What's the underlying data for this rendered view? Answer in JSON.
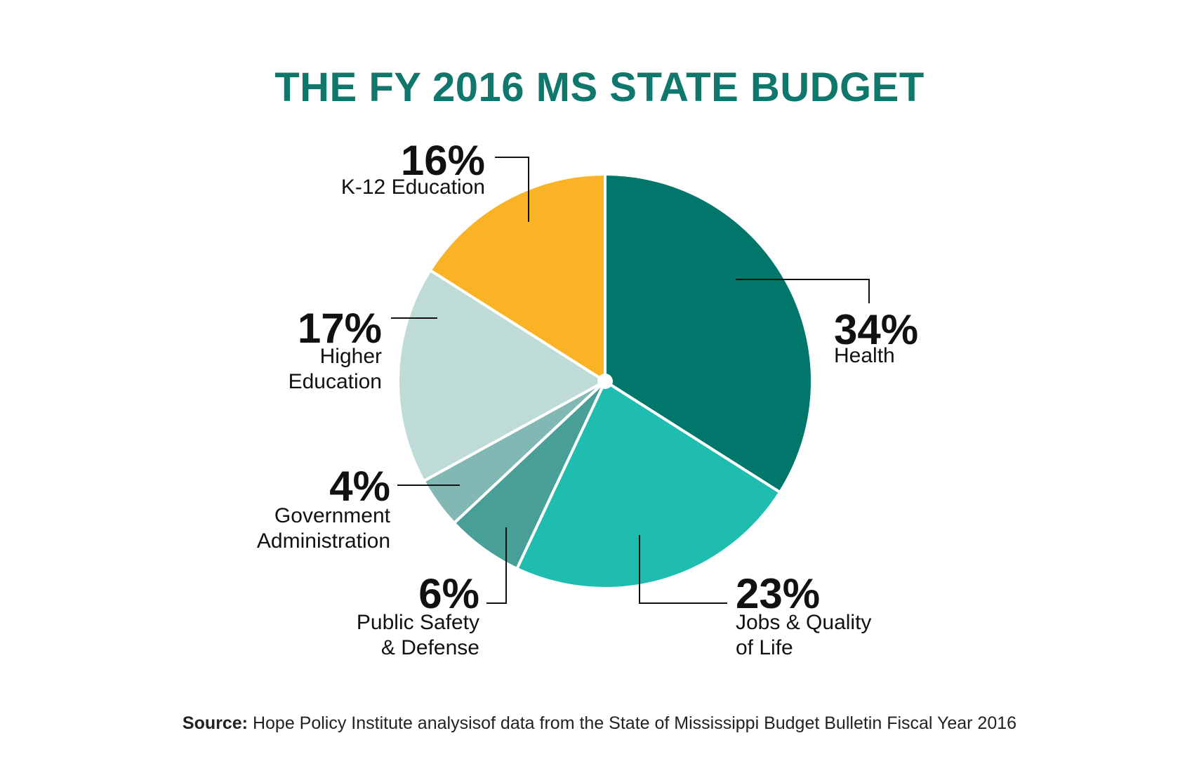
{
  "chart_data": {
    "type": "pie",
    "title": "THE FY 2016 MS STATE BUDGET",
    "slices": [
      {
        "label": "Health",
        "label_lines": [
          "Health"
        ],
        "value": 34,
        "value_label": "34%",
        "color": "#01776b"
      },
      {
        "label": "Jobs & Quality of Life",
        "label_lines": [
          "Jobs & Quality",
          "of Life"
        ],
        "value": 23,
        "value_label": "23%",
        "color": "#1fbcb0"
      },
      {
        "label": "Public Safety & Defense",
        "label_lines": [
          "Public Safety",
          "& Defense"
        ],
        "value": 6,
        "value_label": "6%",
        "color": "#489f98"
      },
      {
        "label": "Government Administration",
        "label_lines": [
          "Government",
          "Administration"
        ],
        "value": 4,
        "value_label": "4%",
        "color": "#82b8b3"
      },
      {
        "label": "Higher Education",
        "label_lines": [
          "Higher",
          "Education"
        ],
        "value": 17,
        "value_label": "17%",
        "color": "#bedbd8"
      },
      {
        "label": "K-12 Education",
        "label_lines": [
          "K-12 Education"
        ],
        "value": 16,
        "value_label": "16%",
        "color": "#fab325"
      }
    ],
    "start_angle_deg": 0,
    "direction": "clockwise",
    "legend": "none",
    "labels": "callouts with leader lines"
  },
  "source": {
    "key": "Source:",
    "text": " Hope Policy Institute analysisof data from the State of Mississippi Budget Bulletin Fiscal Year 2016"
  },
  "colors": {
    "title": "#0f776b",
    "slice_border": "#ffffff",
    "text": "#111111",
    "leader_line": "#111111"
  }
}
